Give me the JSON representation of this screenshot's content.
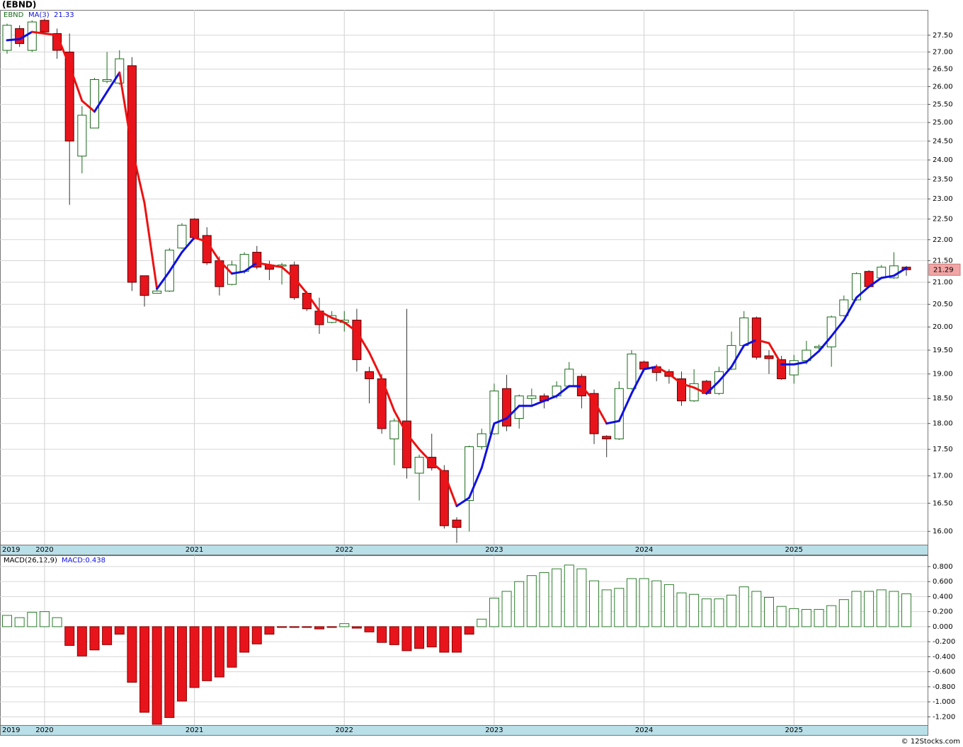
{
  "chart_data": [
    {
      "type": "candlestick",
      "title": "(EBND)",
      "log_scale": true,
      "grid": true,
      "series": [
        {
          "name": "EBND",
          "up_color": "#1a6b1a",
          "down_color": "#e8141c",
          "open": [
            27.05,
            27.7,
            27.05,
            27.95,
            27.55,
            27.0,
            24.1,
            24.85,
            26.15,
            26.1,
            26.6,
            21.15,
            20.75,
            20.8,
            21.8,
            22.5,
            22.1,
            21.5,
            20.95,
            21.25,
            21.7,
            21.4,
            21.38,
            21.4,
            20.75,
            20.35,
            20.1,
            20.1,
            20.15,
            19.05,
            18.9,
            17.7,
            18.05,
            17.05,
            17.35,
            17.1,
            16.2,
            16.55,
            17.55,
            17.8,
            18.7,
            18.1,
            18.5,
            18.55,
            18.55,
            18.75,
            18.95,
            18.6,
            17.75,
            17.7,
            18.7,
            19.25,
            19.15,
            19.05,
            18.9,
            18.45,
            18.85,
            18.6,
            19.1,
            19.6,
            20.2,
            19.38,
            19.3,
            18.98,
            19.28,
            19.55,
            19.57,
            20.25,
            20.6,
            21.25,
            21.1,
            21.1,
            21.35
          ],
          "high": [
            27.85,
            27.8,
            27.95,
            28.0,
            27.7,
            27.55,
            25.45,
            26.25,
            27.0,
            27.05,
            26.85,
            21.15,
            20.85,
            21.8,
            22.4,
            22.52,
            22.3,
            21.6,
            21.5,
            21.7,
            21.85,
            21.5,
            21.45,
            21.48,
            20.8,
            20.65,
            20.35,
            20.35,
            20.4,
            19.15,
            19.0,
            18.1,
            20.4,
            17.4,
            17.8,
            17.2,
            16.25,
            17.57,
            17.9,
            18.8,
            18.98,
            18.58,
            18.7,
            18.6,
            18.85,
            19.25,
            19.0,
            18.68,
            17.77,
            18.85,
            19.5,
            19.28,
            19.2,
            19.1,
            19.05,
            19.1,
            18.88,
            19.15,
            19.9,
            20.35,
            20.23,
            19.5,
            19.38,
            19.4,
            19.7,
            19.62,
            20.25,
            20.7,
            21.23,
            21.28,
            21.4,
            21.7,
            21.38
          ],
          "low": [
            26.95,
            27.15,
            27.0,
            27.55,
            26.8,
            22.85,
            23.65,
            24.85,
            26.1,
            26.05,
            20.8,
            20.45,
            20.75,
            20.78,
            21.78,
            22.0,
            21.4,
            20.7,
            20.93,
            21.2,
            21.3,
            21.05,
            20.95,
            20.6,
            20.35,
            19.85,
            20.08,
            19.9,
            19.05,
            18.4,
            17.8,
            17.2,
            16.95,
            16.55,
            17.1,
            16.05,
            15.8,
            16.0,
            17.5,
            17.78,
            17.85,
            17.9,
            18.35,
            18.3,
            18.5,
            18.72,
            18.3,
            17.6,
            17.35,
            17.68,
            18.68,
            19.05,
            18.85,
            18.8,
            18.35,
            18.43,
            18.57,
            18.57,
            19.08,
            19.58,
            19.3,
            19.0,
            18.88,
            18.8,
            19.2,
            19.52,
            19.15,
            20.23,
            20.58,
            20.87,
            21.08,
            21.08,
            21.15
          ],
          "close": [
            27.8,
            27.25,
            27.9,
            27.6,
            27.05,
            24.5,
            25.2,
            26.2,
            26.2,
            26.8,
            21.0,
            20.7,
            20.8,
            21.75,
            22.35,
            22.05,
            21.45,
            20.9,
            21.4,
            21.65,
            21.35,
            21.3,
            21.4,
            20.65,
            20.4,
            20.05,
            20.25,
            20.15,
            19.3,
            18.9,
            17.9,
            18.05,
            17.15,
            17.35,
            17.15,
            16.1,
            16.07,
            17.55,
            17.8,
            18.65,
            17.95,
            18.55,
            18.55,
            18.45,
            18.75,
            19.1,
            18.55,
            17.8,
            17.7,
            18.7,
            19.42,
            19.1,
            19.03,
            18.95,
            18.45,
            18.8,
            18.6,
            19.05,
            19.6,
            20.2,
            19.35,
            19.32,
            18.9,
            19.28,
            19.5,
            19.58,
            20.22,
            20.6,
            21.2,
            20.9,
            21.35,
            21.38,
            21.29
          ]
        }
      ],
      "ma": {
        "name": "MA(3)",
        "label": "21.33",
        "up_color": "#1010e0",
        "down_color": "#ee1111",
        "values": [
          27.35,
          27.38,
          27.6,
          27.55,
          27.5,
          26.6,
          25.6,
          25.3,
          25.85,
          26.4,
          24.3,
          22.9,
          20.85,
          21.25,
          21.7,
          22.05,
          21.95,
          21.5,
          21.2,
          21.25,
          21.45,
          21.4,
          21.35,
          21.1,
          20.75,
          20.35,
          20.2,
          20.1,
          19.9,
          19.45,
          18.9,
          18.25,
          17.8,
          17.5,
          17.25,
          17.05,
          16.45,
          16.6,
          17.15,
          18.0,
          18.1,
          18.35,
          18.35,
          18.45,
          18.55,
          18.75,
          18.75,
          18.45,
          18.0,
          18.05,
          18.6,
          19.1,
          19.15,
          19.0,
          18.8,
          18.72,
          18.6,
          18.85,
          19.15,
          19.6,
          19.72,
          19.65,
          19.2,
          19.2,
          19.25,
          19.48,
          19.8,
          20.15,
          20.65,
          20.9,
          21.1,
          21.15,
          21.33
        ]
      },
      "last_label": "21.29",
      "xlim": [
        -0.567,
        73.7
      ],
      "xticks": [
        {
          "value": 0,
          "label": "2019"
        },
        {
          "value": 3,
          "label": "2020"
        },
        {
          "value": 15,
          "label": "2021"
        },
        {
          "value": 27,
          "label": "2022"
        },
        {
          "value": 39,
          "label": "2023"
        },
        {
          "value": 51,
          "label": "2024"
        },
        {
          "value": 63,
          "label": "2025"
        }
      ],
      "ylim": [
        15.77,
        28.27
      ],
      "yticks": [
        {
          "value": 27.5,
          "label": "27.50"
        },
        {
          "value": 27,
          "label": "27.00"
        },
        {
          "value": 26.5,
          "label": "26.50"
        },
        {
          "value": 26,
          "label": "26.00"
        },
        {
          "value": 25.5,
          "label": "25.50"
        },
        {
          "value": 25,
          "label": "25.00"
        },
        {
          "value": 24.5,
          "label": "24.50"
        },
        {
          "value": 24,
          "label": "24.00"
        },
        {
          "value": 23.5,
          "label": "23.50"
        },
        {
          "value": 23,
          "label": "23.00"
        },
        {
          "value": 22.5,
          "label": "22.50"
        },
        {
          "value": 22,
          "label": "22.00"
        },
        {
          "value": 21.5,
          "label": "21.50"
        },
        {
          "value": 21,
          "label": "21.00"
        },
        {
          "value": 20.5,
          "label": "20.50"
        },
        {
          "value": 20,
          "label": "20.00"
        },
        {
          "value": 19.5,
          "label": "19.50"
        },
        {
          "value": 19,
          "label": "19.00"
        },
        {
          "value": 18.5,
          "label": "18.50"
        },
        {
          "value": 18,
          "label": "18.00"
        },
        {
          "value": 17.5,
          "label": "17.50"
        },
        {
          "value": 17,
          "label": "17.00"
        },
        {
          "value": 16.5,
          "label": "16.50"
        },
        {
          "value": 16,
          "label": "16.00"
        }
      ]
    },
    {
      "type": "bar",
      "title": "MACD(26,12,9)",
      "legend": "MACD:0.438",
      "grid": true,
      "pos_color": "#2e7d2e",
      "neg_color": "#e8141c",
      "values": [
        0.15,
        0.12,
        0.19,
        0.2,
        0.12,
        -0.25,
        -0.39,
        -0.31,
        -0.24,
        -0.1,
        -0.74,
        -1.14,
        -1.3,
        -1.21,
        -0.99,
        -0.81,
        -0.72,
        -0.67,
        -0.54,
        -0.34,
        -0.23,
        -0.1,
        -0.01,
        -0.01,
        -0.01,
        -0.03,
        -0.01,
        0.04,
        -0.02,
        -0.07,
        -0.21,
        -0.24,
        -0.32,
        -0.29,
        -0.27,
        -0.34,
        -0.34,
        -0.1,
        0.1,
        0.38,
        0.47,
        0.6,
        0.68,
        0.72,
        0.77,
        0.82,
        0.77,
        0.61,
        0.49,
        0.51,
        0.64,
        0.64,
        0.61,
        0.56,
        0.45,
        0.43,
        0.37,
        0.37,
        0.42,
        0.53,
        0.47,
        0.39,
        0.27,
        0.24,
        0.23,
        0.23,
        0.28,
        0.36,
        0.47,
        0.47,
        0.49,
        0.47,
        0.438
      ],
      "xlim": [
        -0.567,
        73.7
      ],
      "xticks": [
        {
          "value": 0,
          "label": "2019"
        },
        {
          "value": 3,
          "label": "2020"
        },
        {
          "value": 15,
          "label": "2021"
        },
        {
          "value": 27,
          "label": "2022"
        },
        {
          "value": 39,
          "label": "2023"
        },
        {
          "value": 51,
          "label": "2024"
        },
        {
          "value": 63,
          "label": "2025"
        }
      ],
      "ylim": [
        -1.31,
        0.95
      ],
      "yticks": [
        {
          "value": 0.8,
          "label": "0.800"
        },
        {
          "value": 0.6,
          "label": "0.600"
        },
        {
          "value": 0.4,
          "label": "0.400"
        },
        {
          "value": 0.2,
          "label": "0.200"
        },
        {
          "value": 0,
          "label": "0.000"
        },
        {
          "value": -0.2,
          "label": "-0.200"
        },
        {
          "value": -0.4,
          "label": "-0.400"
        },
        {
          "value": -0.6,
          "label": "-0.600"
        },
        {
          "value": -0.8,
          "label": "-0.800"
        },
        {
          "value": -1,
          "label": "-1.000"
        },
        {
          "value": -1.2,
          "label": "-1.200"
        }
      ]
    }
  ],
  "credit": "© 12Stocks.com"
}
